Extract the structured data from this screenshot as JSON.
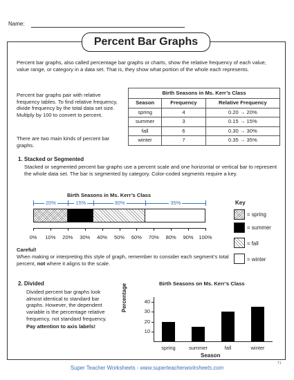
{
  "header": {
    "name_label": "Name:",
    "title": "Percent Bar Graphs"
  },
  "intro": "Percent bar graphs, also called percentage bar graphs or charts, show the relative frequency of each value, value range, or category in a data set. That is, they show what portion of the whole each represents.",
  "side_text_1": "Percent bar graphs pair with relative frequency tables. To find relative frequency, divide frequency by the total data set size. Multiply by 100 to convert to percent.",
  "side_text_2": "There are two main kinds of percent bar graphs.",
  "table": {
    "caption": "Birth Seasons in Ms. Kerr’s Class",
    "headers": [
      "Season",
      "Frequency",
      "Relative Frequency"
    ],
    "rows": [
      [
        "spring",
        "4",
        "0.20 → 20%"
      ],
      [
        "summer",
        "3",
        "0.15 → 15%"
      ],
      [
        "fall",
        "6",
        "0.30 → 30%"
      ],
      [
        "winter",
        "7",
        "0.35 → 35%"
      ]
    ]
  },
  "section1": {
    "title": "1. Stacked or Segmented",
    "body": "Stacked or segmented percent bar graphs use a percent scale and one horizontal or vertical bar to represent the whole data set. The bar is segmented by category. Color-coded segments require a key.",
    "careful_title": "Careful!",
    "careful_pre": "When making or interpreting this style of graph, remember to consider each segment’s total percent, ",
    "careful_bold": "not",
    "careful_post": " where it aligns to the scale."
  },
  "key": {
    "title": "Key",
    "items": [
      {
        "label": "= spring",
        "pattern": "crosshatch"
      },
      {
        "label": "= summer",
        "pattern": "black"
      },
      {
        "label": "= fall",
        "pattern": "diagonal"
      },
      {
        "label": "= winter",
        "pattern": "white"
      }
    ]
  },
  "section2": {
    "title": "2. Divided",
    "body": "Divided percent bar graphs look almost identical to standard bar graphs. However, the dependent variable is the percentage relative frequency, not standard frequency.",
    "bold": "Pay attention to axis labels!"
  },
  "chart_data": [
    {
      "type": "bar",
      "orientation": "horizontal-stacked",
      "title": "Birth Seasons in Ms. Kerr’s Class",
      "categories": [
        "spring",
        "summer",
        "fall",
        "winter"
      ],
      "values": [
        20,
        15,
        30,
        35
      ],
      "segment_labels": [
        "20%",
        "15%",
        "30%",
        "35%"
      ],
      "xlim": [
        0,
        100
      ],
      "tick_labels": [
        "0%",
        "10%",
        "20%",
        "30%",
        "40%",
        "50%",
        "60%",
        "70%",
        "80%",
        "90%",
        "100%"
      ],
      "accent_color": "#3b6fb6"
    },
    {
      "type": "bar",
      "title": "Birth Seasons on Ms. Kerr’s Class",
      "categories": [
        "spring",
        "summer",
        "fall",
        "winter"
      ],
      "values": [
        20,
        15,
        30,
        35
      ],
      "xlabel": "Season",
      "ylabel": "Percentage",
      "ylim": [
        0,
        45
      ],
      "yticks": [
        "10",
        "20",
        "30",
        "40"
      ]
    }
  ],
  "footer": {
    "prefix": "Super Teacher Worksheets - ",
    "site": "www.superteacherworksheets.com",
    "corner": "T1"
  }
}
